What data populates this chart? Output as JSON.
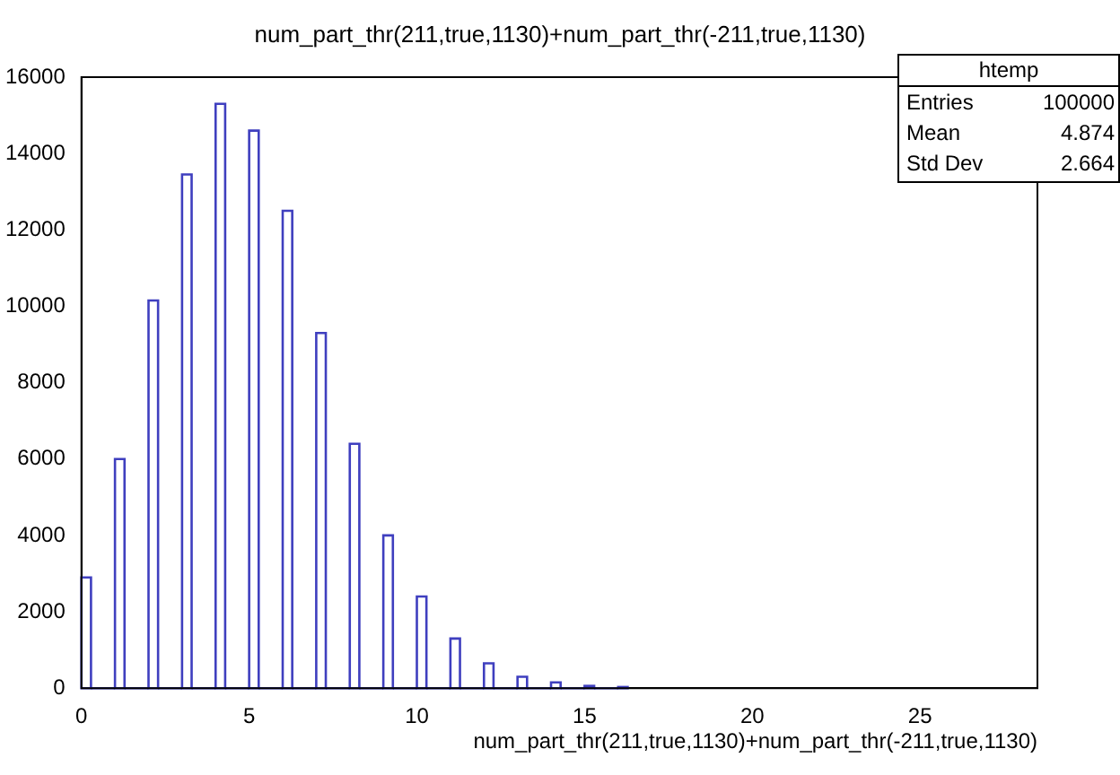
{
  "chart_data": {
    "type": "histogram",
    "title": "num_part_thr(211,true,1130)+num_part_thr(-211,true,1130)",
    "xlabel": "num_part_thr(211,true,1130)+num_part_thr(-211,true,1130)",
    "bins": [
      0,
      0.285,
      1,
      1.285,
      2,
      2.285,
      3,
      3.285,
      4,
      4.285,
      5,
      5.285,
      6,
      6.285,
      7,
      7.285,
      8,
      8.285,
      9,
      9.285,
      10,
      10.285,
      11,
      11.285,
      12,
      12.285,
      13,
      13.285,
      14,
      14.285,
      15,
      15.285,
      16,
      16.285
    ],
    "values": [
      2900,
      0,
      6000,
      0,
      10150,
      0,
      13450,
      0,
      15300,
      0,
      14600,
      0,
      12500,
      0,
      9300,
      0,
      6400,
      0,
      4000,
      0,
      2400,
      0,
      1300,
      0,
      650,
      0,
      300,
      0,
      150,
      0,
      60,
      0,
      30
    ],
    "color": "#3f3fbf",
    "xlim": [
      0,
      28.5
    ],
    "xticks": [
      0,
      5,
      10,
      15,
      20,
      25
    ],
    "ylim": [
      0,
      16000
    ],
    "yticks": [
      0,
      2000,
      4000,
      6000,
      8000,
      10000,
      12000,
      14000,
      16000
    ],
    "annotations": [
      "htemp",
      "Entries",
      "100000",
      "Mean",
      "4.874",
      "Std Dev",
      "2.664"
    ],
    "grid": false,
    "legend": false
  }
}
